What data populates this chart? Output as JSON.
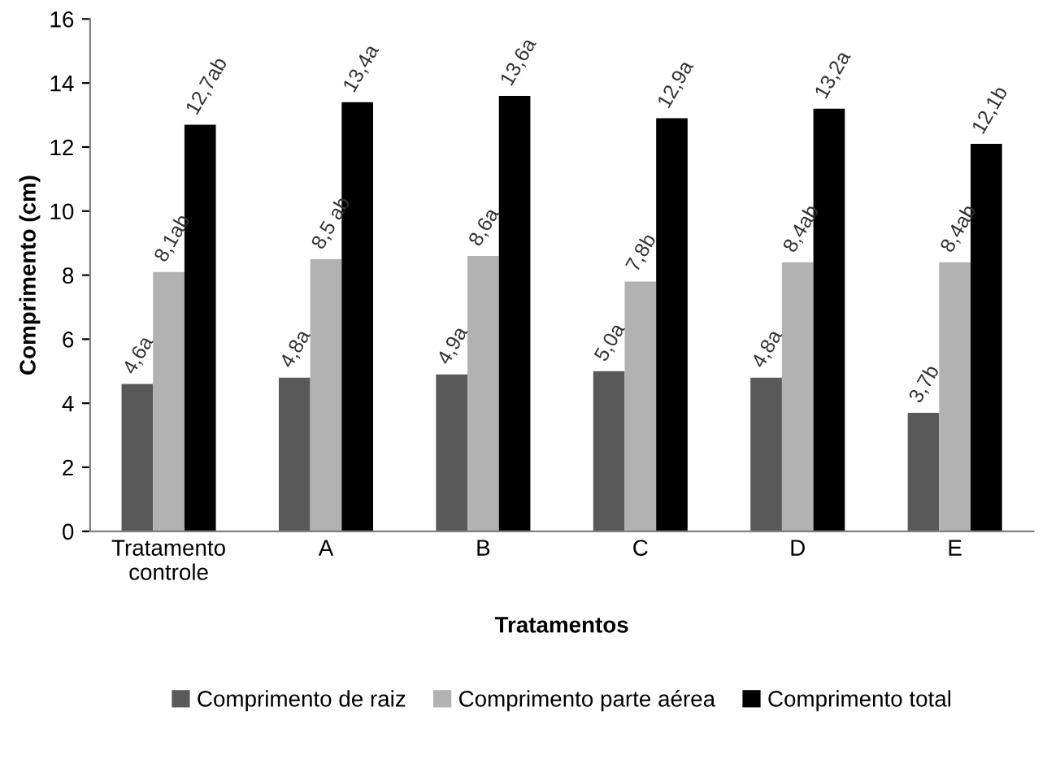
{
  "chart_data": {
    "type": "bar",
    "xlabel": "Tratamentos",
    "ylabel": "Comprimento (cm)",
    "categories": [
      "Tratamento\ncontrole",
      "A",
      "B",
      "C",
      "D",
      "E"
    ],
    "series": [
      {
        "name": "Comprimento de raiz",
        "color": "#595959",
        "values": [
          4.6,
          4.8,
          4.9,
          5.0,
          4.8,
          3.7
        ],
        "value_labels": [
          "4,6a",
          "4,8a",
          "4,9a",
          "5,0a",
          "4,8a",
          "3,7b"
        ]
      },
      {
        "name": "Comprimento parte aérea",
        "color": "#b2b2b2",
        "values": [
          8.1,
          8.5,
          8.6,
          7.8,
          8.4,
          8.4
        ],
        "value_labels": [
          "8,1ab",
          "8,5 ab",
          "8,6a",
          "7,8b",
          "8,4ab",
          "8,4ab"
        ]
      },
      {
        "name": "Comprimento total",
        "color": "#000000",
        "values": [
          12.7,
          13.4,
          13.6,
          12.9,
          13.2,
          12.1
        ],
        "value_labels": [
          "12,7ab",
          "13,4a",
          "13,6a",
          "12,9a",
          "13,2a",
          "12,1b"
        ]
      }
    ],
    "ylim": [
      0,
      16
    ],
    "yticks": [
      0,
      2,
      4,
      6,
      8,
      10,
      12,
      14,
      16
    ],
    "grid": false,
    "legend": "bottom"
  }
}
